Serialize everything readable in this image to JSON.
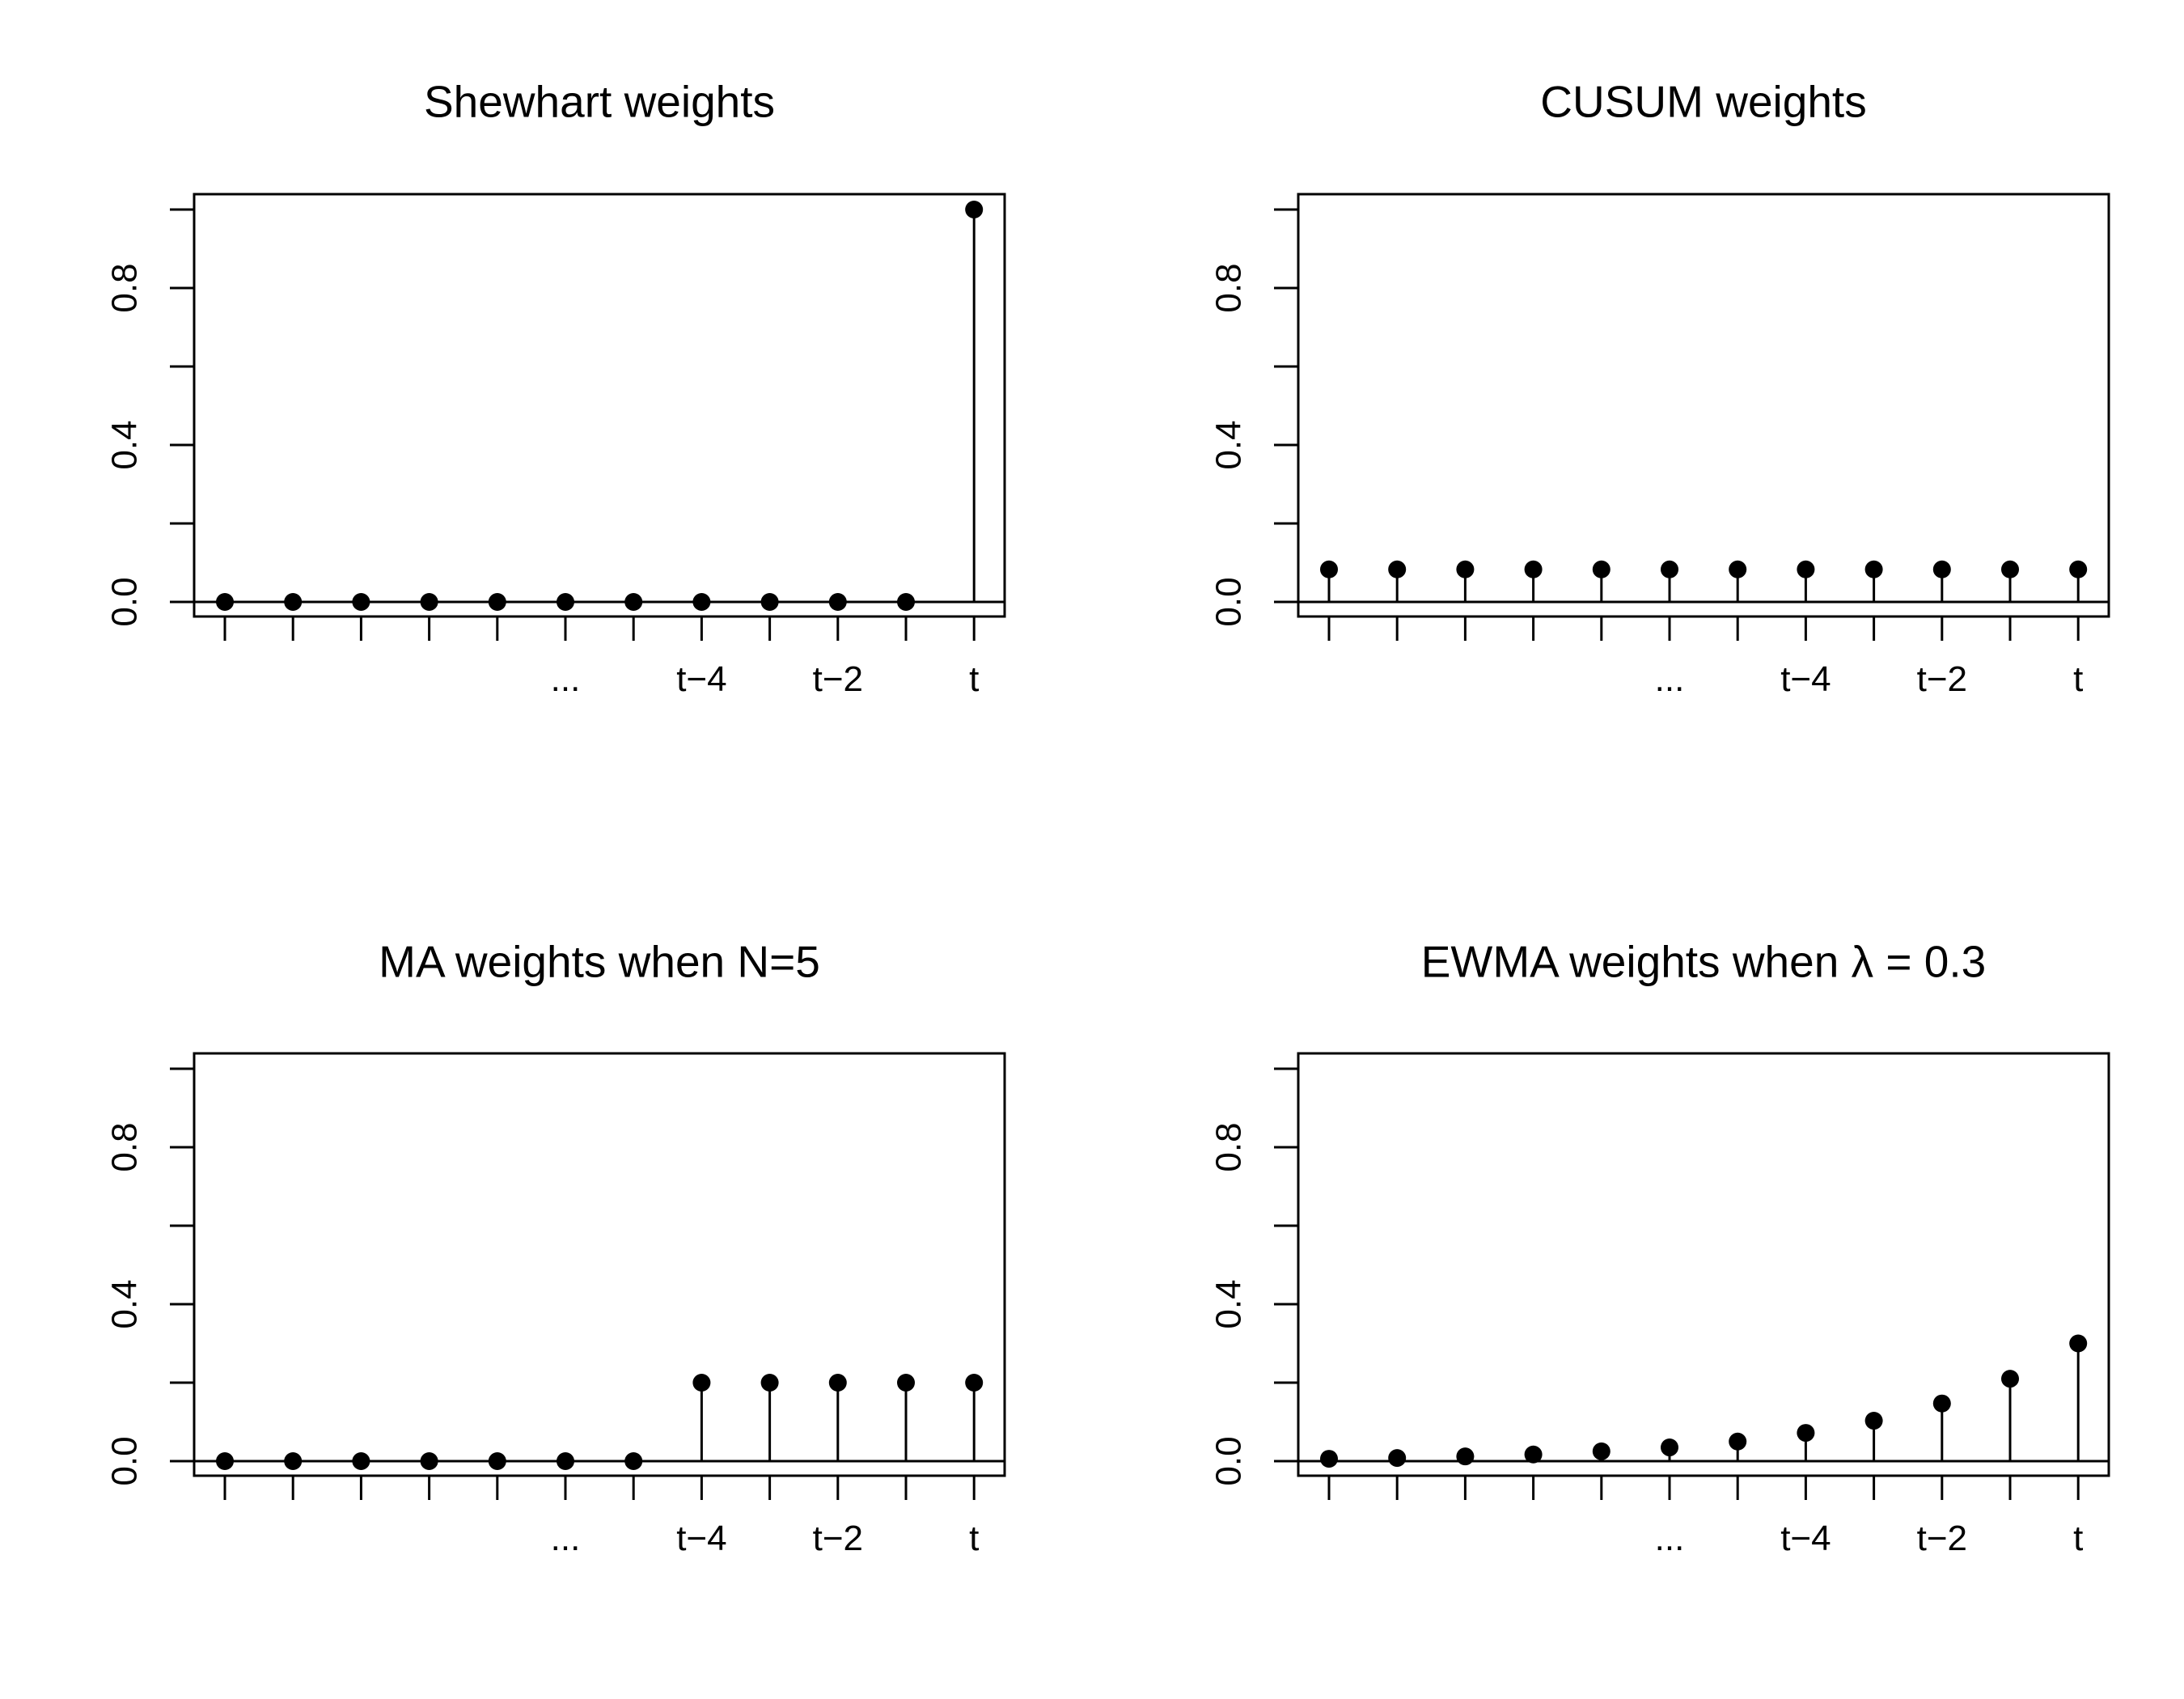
{
  "chart_data": [
    {
      "type": "scatter",
      "style": "stem",
      "title": "Shewhart weights",
      "x_tick_labels": [
        "",
        "",
        "",
        "",
        "",
        "...",
        "",
        "t−4",
        "",
        "t−2",
        "",
        "t"
      ],
      "y_ticks": [
        "0.0",
        "0.4",
        "0.8"
      ],
      "ylim": [
        0,
        1
      ],
      "values": [
        0,
        0,
        0,
        0,
        0,
        0,
        0,
        0,
        0,
        0,
        0,
        1.0
      ],
      "grid": false
    },
    {
      "type": "scatter",
      "style": "stem",
      "title": "CUSUM weights",
      "x_tick_labels": [
        "",
        "",
        "",
        "",
        "",
        "...",
        "",
        "t−4",
        "",
        "t−2",
        "",
        "t"
      ],
      "y_ticks": [
        "0.0",
        "0.4",
        "0.8"
      ],
      "ylim": [
        0,
        1
      ],
      "values": [
        0.083,
        0.083,
        0.083,
        0.083,
        0.083,
        0.083,
        0.083,
        0.083,
        0.083,
        0.083,
        0.083,
        0.083
      ],
      "grid": false
    },
    {
      "type": "scatter",
      "style": "stem",
      "title": "MA weights when N=5",
      "x_tick_labels": [
        "",
        "",
        "",
        "",
        "",
        "...",
        "",
        "t−4",
        "",
        "t−2",
        "",
        "t"
      ],
      "y_ticks": [
        "0.0",
        "0.4",
        "0.8"
      ],
      "ylim": [
        0,
        1
      ],
      "values": [
        0,
        0,
        0,
        0,
        0,
        0,
        0,
        0.2,
        0.2,
        0.2,
        0.2,
        0.2
      ],
      "grid": false
    },
    {
      "type": "scatter",
      "style": "stem",
      "title": "EWMA weights when λ = 0.3",
      "x_tick_labels": [
        "",
        "",
        "",
        "",
        "",
        "...",
        "",
        "t−4",
        "",
        "t−2",
        "",
        "t"
      ],
      "y_ticks": [
        "0.0",
        "0.4",
        "0.8"
      ],
      "ylim": [
        0,
        1
      ],
      "values": [
        0.006,
        0.008,
        0.012,
        0.017,
        0.025,
        0.035,
        0.05,
        0.072,
        0.103,
        0.147,
        0.21,
        0.3
      ],
      "grid": false
    }
  ]
}
